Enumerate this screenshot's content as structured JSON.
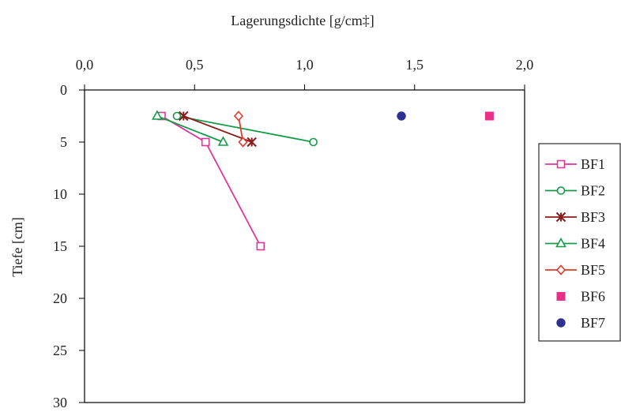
{
  "chart_data": {
    "type": "line",
    "xlabel": "Lagerungsdichte [g/cm‡]",
    "ylabel": "Tiefe [cm]",
    "xlim": [
      0.0,
      2.0
    ],
    "ylim": [
      0,
      30
    ],
    "y_inverted": true,
    "x_axis_position": "top",
    "x_ticks": [
      0.0,
      0.5,
      1.0,
      1.5,
      2.0
    ],
    "x_tick_labels": [
      "0,0",
      "0,5",
      "1,0",
      "1,5",
      "2,0"
    ],
    "y_ticks": [
      0,
      5,
      10,
      15,
      20,
      25,
      30
    ],
    "y_tick_labels": [
      "0",
      "5",
      "10",
      "15",
      "20",
      "25",
      "30"
    ],
    "grid": false,
    "legend_position": "right",
    "series": [
      {
        "name": "BF1",
        "color": "#e0359a",
        "marker": "square-open",
        "line": true,
        "points": [
          [
            0.35,
            2.5
          ],
          [
            0.55,
            5
          ],
          [
            0.8,
            15
          ]
        ]
      },
      {
        "name": "BF2",
        "color": "#169a48",
        "marker": "circle-open",
        "line": true,
        "points": [
          [
            0.42,
            2.5
          ],
          [
            1.04,
            5
          ]
        ]
      },
      {
        "name": "BF3",
        "color": "#8b1a1a",
        "marker": "star",
        "line": true,
        "points": [
          [
            0.45,
            2.5
          ],
          [
            0.76,
            5
          ]
        ]
      },
      {
        "name": "BF4",
        "color": "#169a48",
        "marker": "triangle-open",
        "line": true,
        "points": [
          [
            0.33,
            2.5
          ],
          [
            0.63,
            5
          ]
        ]
      },
      {
        "name": "BF5",
        "color": "#e03a2a",
        "marker": "diamond-open",
        "line": true,
        "points": [
          [
            0.7,
            2.5
          ],
          [
            0.72,
            5
          ]
        ]
      },
      {
        "name": "BF6",
        "color": "#e8308a",
        "marker": "square-filled",
        "line": false,
        "points": [
          [
            1.84,
            2.5
          ]
        ]
      },
      {
        "name": "BF7",
        "color": "#2e3192",
        "marker": "circle-filled",
        "line": false,
        "points": [
          [
            1.44,
            2.5
          ]
        ]
      }
    ]
  }
}
